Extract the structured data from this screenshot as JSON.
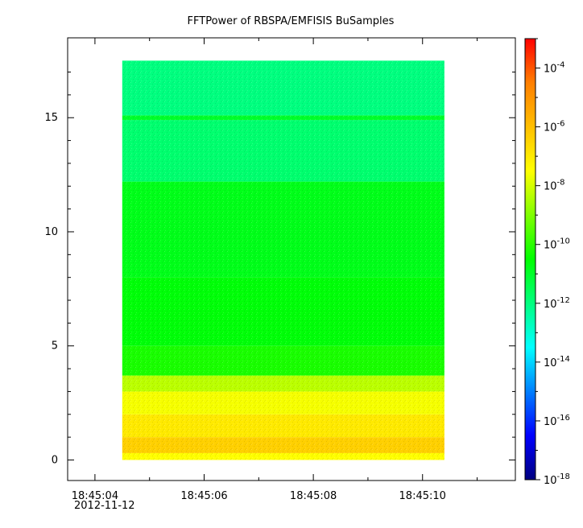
{
  "chart_data": {
    "type": "heatmap",
    "title": "FFTPower of RBSPA/EMFISIS  BuSamples",
    "xlabel": "",
    "ylabel": "",
    "x_date_label": "2012-11-12",
    "x_time_range": [
      "18:45:04.5",
      "18:45:10.4"
    ],
    "xlim": [
      "18:45:03.5",
      "18:45:11.7"
    ],
    "x_ticks": [
      "18:45:04",
      "18:45:06",
      "18:45:08",
      "18:45:10"
    ],
    "y_ticks": [
      0,
      5,
      10,
      15
    ],
    "ylim": [
      -0.9,
      18.5
    ],
    "y_data_range": [
      0,
      17.5
    ],
    "z_scale": "log",
    "zlim": [
      1e-18,
      0.001
    ],
    "colorbar_ticks": [
      "10^-4",
      "10^-6",
      "10^-8",
      "10^-10",
      "10^-12",
      "10^-14",
      "10^-16",
      "10^-18"
    ],
    "colormap": [
      "#00007f",
      "#0000ff",
      "#007fff",
      "#00ffff",
      "#00ff7f",
      "#00ff00",
      "#7fff00",
      "#ffff00",
      "#ffbf00",
      "#ff7f00",
      "#ff0000"
    ],
    "power_profile_log10": [
      {
        "y_min": 0.0,
        "y_max": 0.3,
        "log10_power": -7.5
      },
      {
        "y_min": 0.3,
        "y_max": 1.0,
        "log10_power": -6.4
      },
      {
        "y_min": 1.0,
        "y_max": 2.0,
        "log10_power": -7.0
      },
      {
        "y_min": 2.0,
        "y_max": 3.0,
        "log10_power": -7.6
      },
      {
        "y_min": 3.0,
        "y_max": 3.7,
        "log10_power": -8.3
      },
      {
        "y_min": 3.7,
        "y_max": 5.0,
        "log10_power": -10.2
      },
      {
        "y_min": 5.0,
        "y_max": 8.0,
        "log10_power": -10.6
      },
      {
        "y_min": 8.0,
        "y_max": 12.2,
        "log10_power": -10.8
      },
      {
        "y_min": 12.2,
        "y_max": 14.9,
        "log10_power": -11.8
      },
      {
        "y_min": 14.9,
        "y_max": 15.1,
        "log10_power": -11.0
      },
      {
        "y_min": 15.1,
        "y_max": 17.5,
        "log10_power": -12.0
      }
    ]
  }
}
